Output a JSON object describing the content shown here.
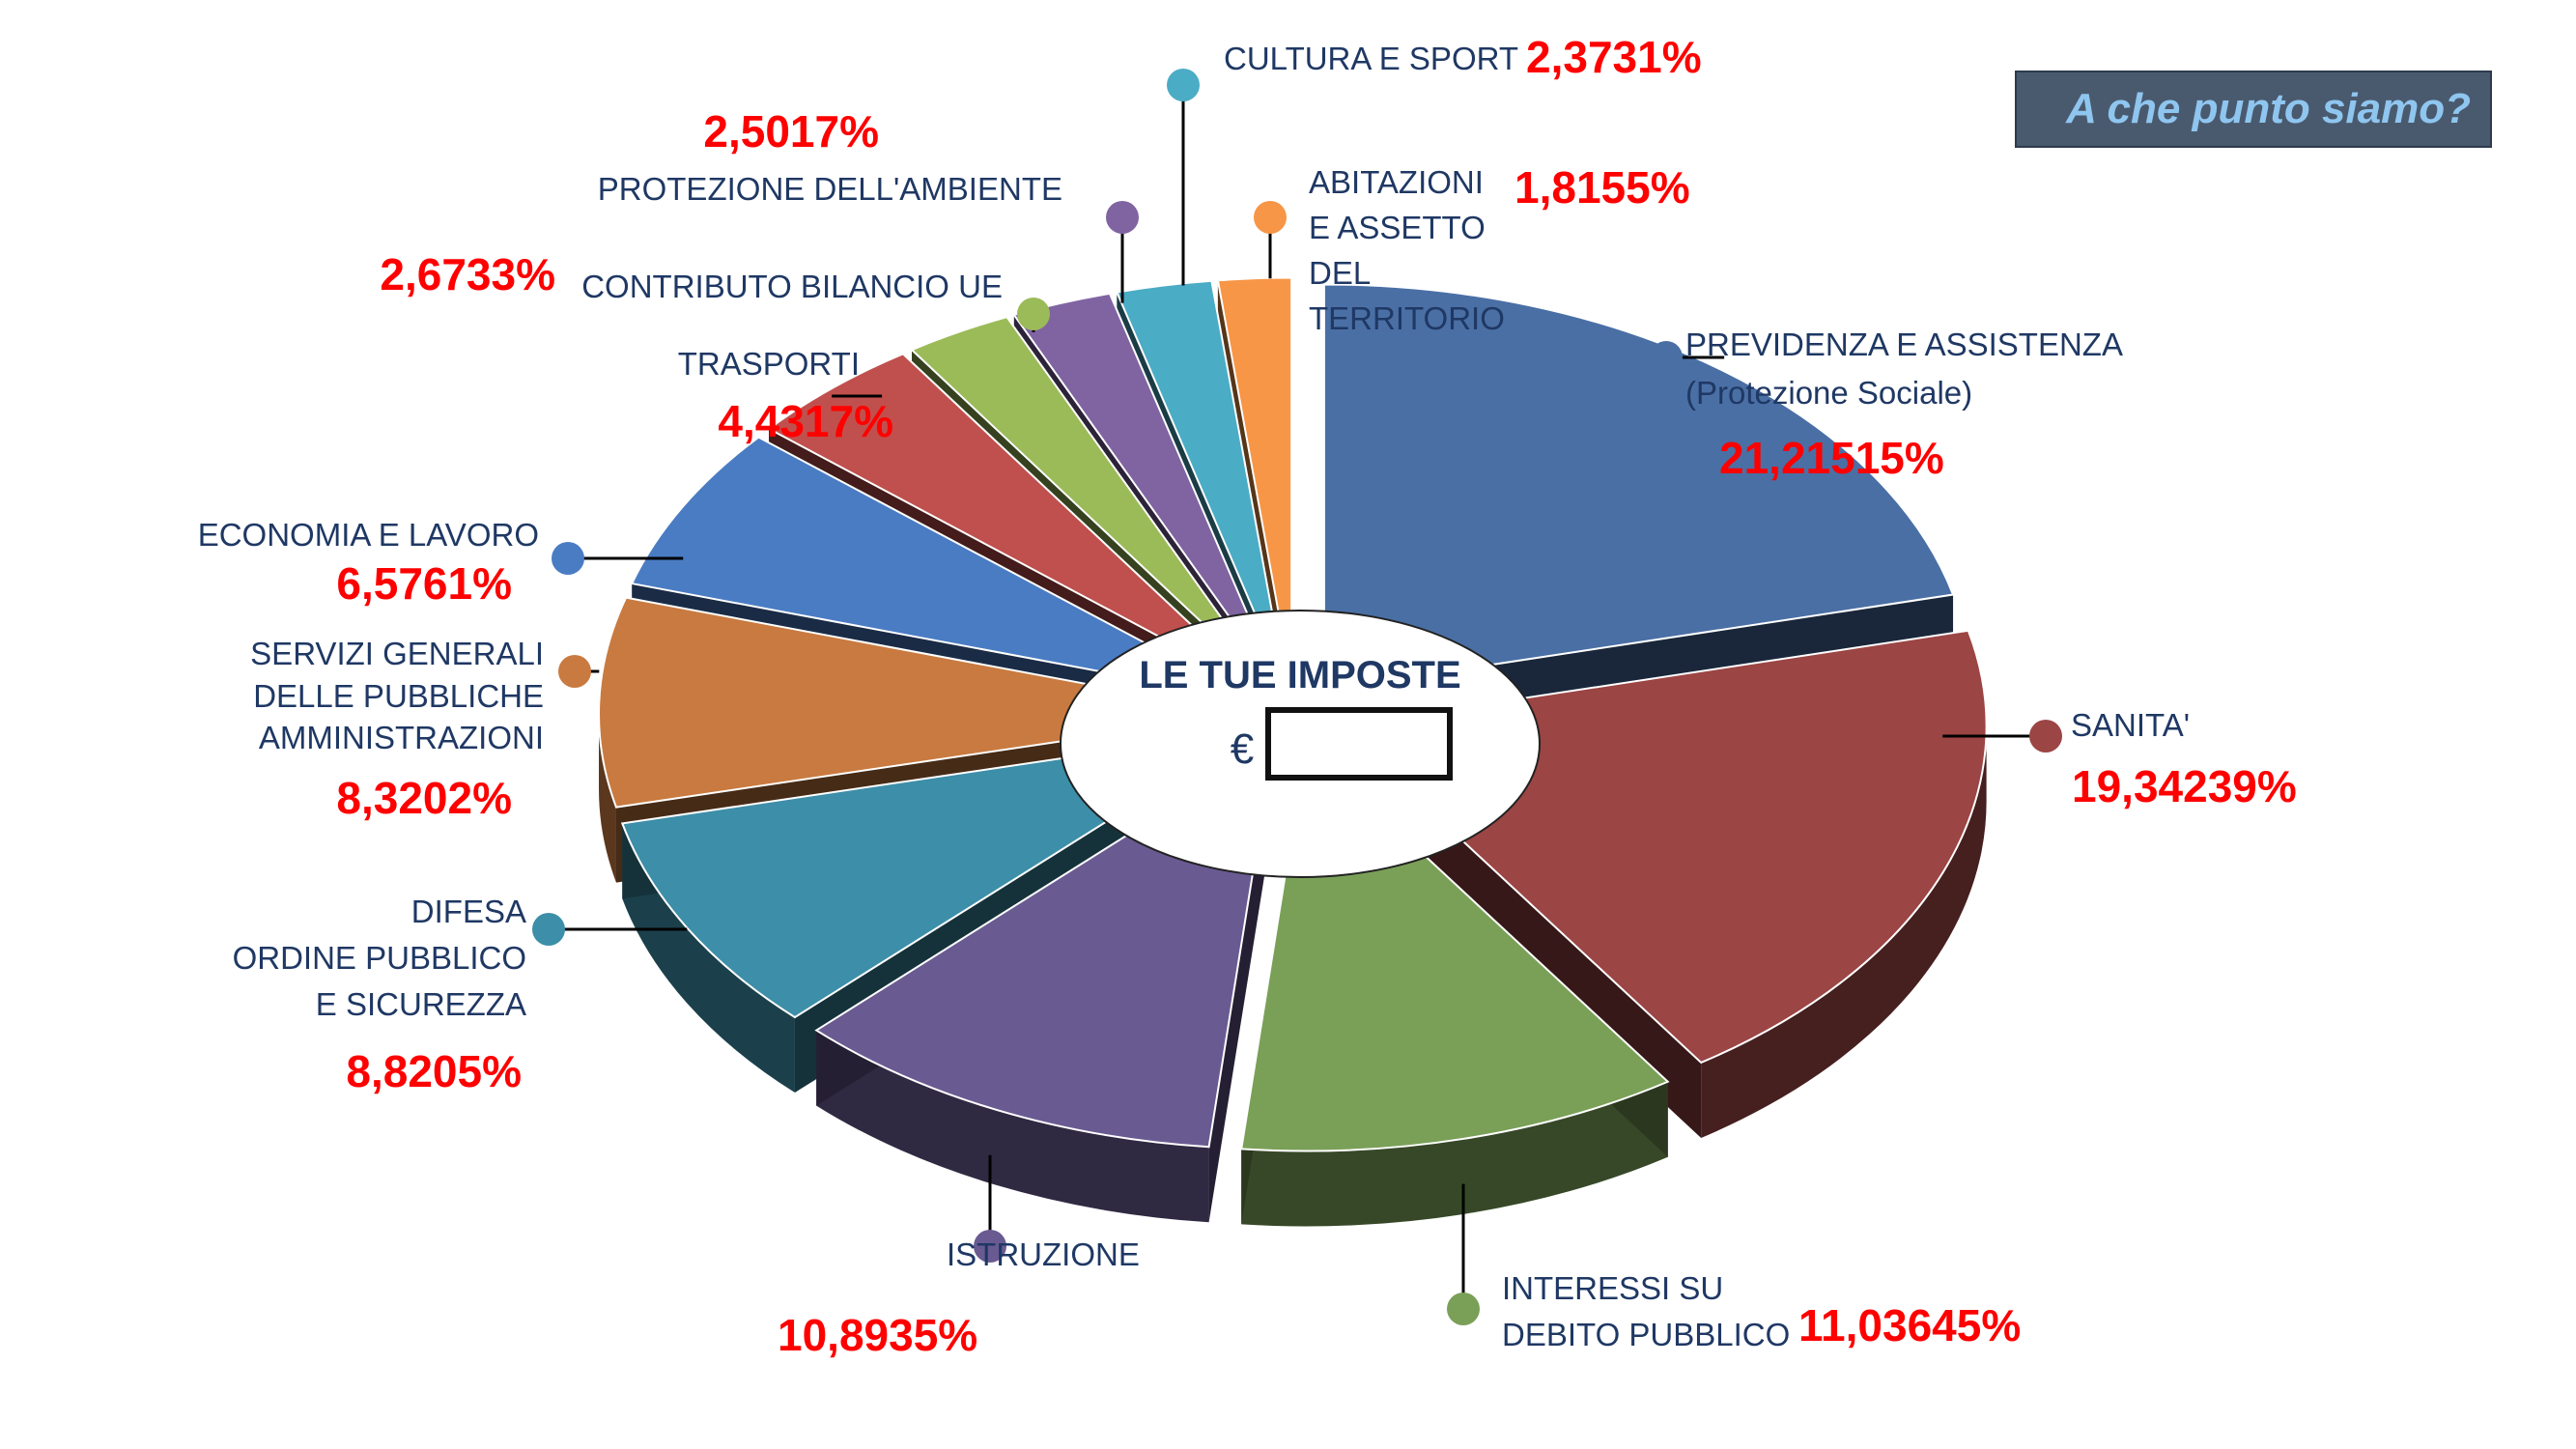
{
  "badge": {
    "text": "A che punto siamo?"
  },
  "center": {
    "title": "LE TUE IMPOSTE",
    "currency": "€"
  },
  "chart_data": {
    "type": "pie",
    "title": "",
    "unit": "%",
    "slices": [
      {
        "id": "previdenza",
        "label_lines": [
          "PREVIDENZA E ASSISTENZA",
          "(Protezione Sociale)"
        ],
        "value": 21.21515,
        "value_label": "21,21515%",
        "color": "#4a6fa5"
      },
      {
        "id": "sanita",
        "label_lines": [
          "SANITA'"
        ],
        "value": 19.34239,
        "value_label": "19,34239%",
        "color": "#9b4544"
      },
      {
        "id": "interessi",
        "label_lines": [
          "INTERESSI SU",
          "DEBITO PUBBLICO"
        ],
        "value": 11.03645,
        "value_label": "11,03645%",
        "color": "#7aa058"
      },
      {
        "id": "istruzione",
        "label_lines": [
          "ISTRUZIONE"
        ],
        "value": 10.8935,
        "value_label": "10,8935%",
        "color": "#6a5a92"
      },
      {
        "id": "difesa",
        "label_lines": [
          "DIFESA",
          "ORDINE PUBBLICO",
          "E SICUREZZA"
        ],
        "value": 8.8205,
        "value_label": "8,8205%",
        "color": "#3d8ea8"
      },
      {
        "id": "servizi",
        "label_lines": [
          "SERVIZI GENERALI",
          "DELLE PUBBLICHE",
          "AMMINISTRAZIONI"
        ],
        "value": 8.3202,
        "value_label": "8,3202%",
        "color": "#c97a40"
      },
      {
        "id": "economia",
        "label_lines": [
          "ECONOMIA E LAVORO"
        ],
        "value": 6.5761,
        "value_label": "6,5761%",
        "color": "#4a7cc4"
      },
      {
        "id": "trasporti",
        "label_lines": [
          "TRASPORTI"
        ],
        "value": 4.4317,
        "value_label": "4,4317%",
        "color": "#c0504d"
      },
      {
        "id": "contributo-ue",
        "label_lines": [
          "CONTRIBUTO BILANCIO UE"
        ],
        "value": 2.6733,
        "value_label": "2,6733%",
        "color": "#9bbb59"
      },
      {
        "id": "ambiente",
        "label_lines": [
          "PROTEZIONE DELL'AMBIENTE"
        ],
        "value": 2.5017,
        "value_label": "2,5017%",
        "color": "#8064a2"
      },
      {
        "id": "cultura",
        "label_lines": [
          "CULTURA E SPORT"
        ],
        "value": 2.3731,
        "value_label": "2,3731%",
        "color": "#4bacc6"
      },
      {
        "id": "abitazioni",
        "label_lines": [
          "ABITAZIONI",
          "E ASSETTO",
          "DEL",
          "TERRITORIO"
        ],
        "value": 1.8155,
        "value_label": "1,8155%",
        "color": "#f79646"
      }
    ]
  }
}
